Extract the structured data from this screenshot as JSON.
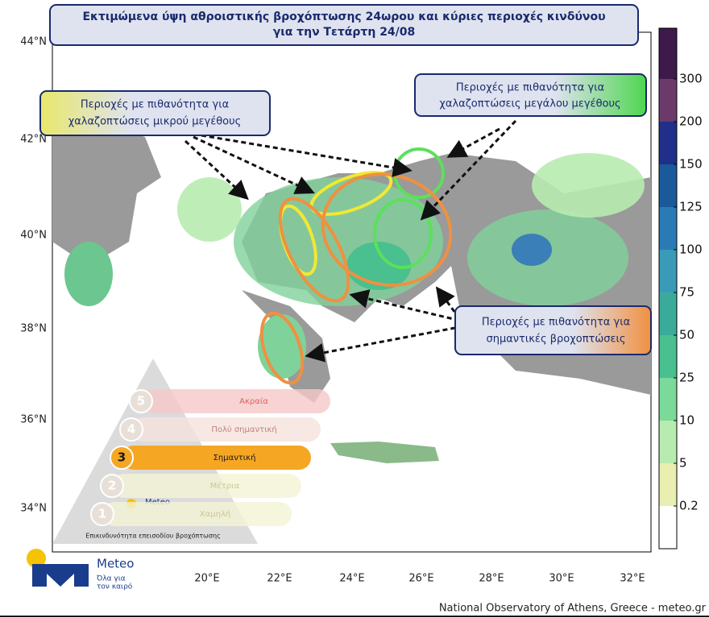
{
  "header": {
    "title_line1": "Εκτιμώμενα ύψη αθροιστικής βροχόπτωσης 24ωρου και κύριες περιοχές κινδύνου",
    "title_line2": "για την Τετάρτη 24/08"
  },
  "callouts": {
    "small_hail": [
      "Περιοχές με πιθανότητα για",
      "χαλαζοπτώσεις μικρού μεγέθους"
    ],
    "large_hail": [
      "Περιοχές με πιθανότητα για",
      "χαλαζοπτώσεις μεγάλου μεγέθους"
    ],
    "heavy_rain": [
      "Περιοχές με πιθανότητα για",
      "σημαντικές βροχοπτώσεις"
    ]
  },
  "latitude_labels": [
    "44°N",
    "42°N",
    "40°N",
    "38°N",
    "36°N",
    "34°N"
  ],
  "longitude_labels": [
    "20°E",
    "22°E",
    "24°E",
    "26°E",
    "28°E",
    "30°E",
    "32°E"
  ],
  "colorbar": {
    "labels": [
      "300",
      "200",
      "150",
      "125",
      "100",
      "75",
      "50",
      "25",
      "10",
      "5",
      "0.2"
    ]
  },
  "risk_scale": {
    "levels": [
      {
        "number": "5",
        "label": "Ακραία"
      },
      {
        "number": "4",
        "label": "Πολύ σημαντική"
      },
      {
        "number": "3",
        "label": "Σημαντική"
      },
      {
        "number": "2",
        "label": "Μέτρια"
      },
      {
        "number": "1",
        "label": "Χαμηλή"
      }
    ],
    "caption": "Επικινδυνότητα επεισοδίου βροχόπτωσης",
    "logo_name": "Meteo"
  },
  "logo": {
    "name": "Meteo",
    "tagline_line1": "Όλα για",
    "tagline_line2": "τον καιρό"
  },
  "footer": "National Observatory of Athens, Greece - meteo.gr"
}
